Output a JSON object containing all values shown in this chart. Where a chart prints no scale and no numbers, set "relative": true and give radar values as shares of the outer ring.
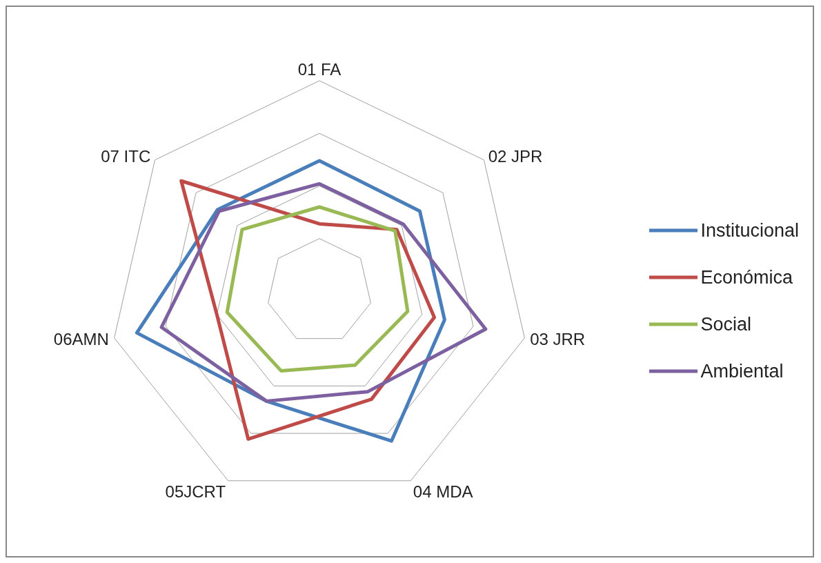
{
  "chart_data": {
    "type": "radar",
    "relative": true,
    "grid": true,
    "legend": "right",
    "categories": [
      "01 FA",
      "02 JPR",
      "03 JRR",
      "04 MDA",
      "05JCRT",
      "06AMN",
      "07 ITC"
    ],
    "series": [
      {
        "name": "Institucional",
        "color": "#4a7ebb",
        "values": [
          0.62,
          0.61,
          0.61,
          0.79,
          0.58,
          0.89,
          0.62
        ]
      },
      {
        "name": "Económica",
        "color": "#be4b48",
        "values": [
          0.32,
          0.47,
          0.56,
          0.57,
          0.78,
          0.5,
          0.84
        ]
      },
      {
        "name": "Social",
        "color": "#98b954",
        "values": [
          0.4,
          0.46,
          0.43,
          0.39,
          0.42,
          0.45,
          0.47
        ]
      },
      {
        "name": "Ambiental",
        "color": "#7d60a0",
        "values": [
          0.51,
          0.51,
          0.81,
          0.53,
          0.58,
          0.77,
          0.61
        ]
      }
    ]
  }
}
